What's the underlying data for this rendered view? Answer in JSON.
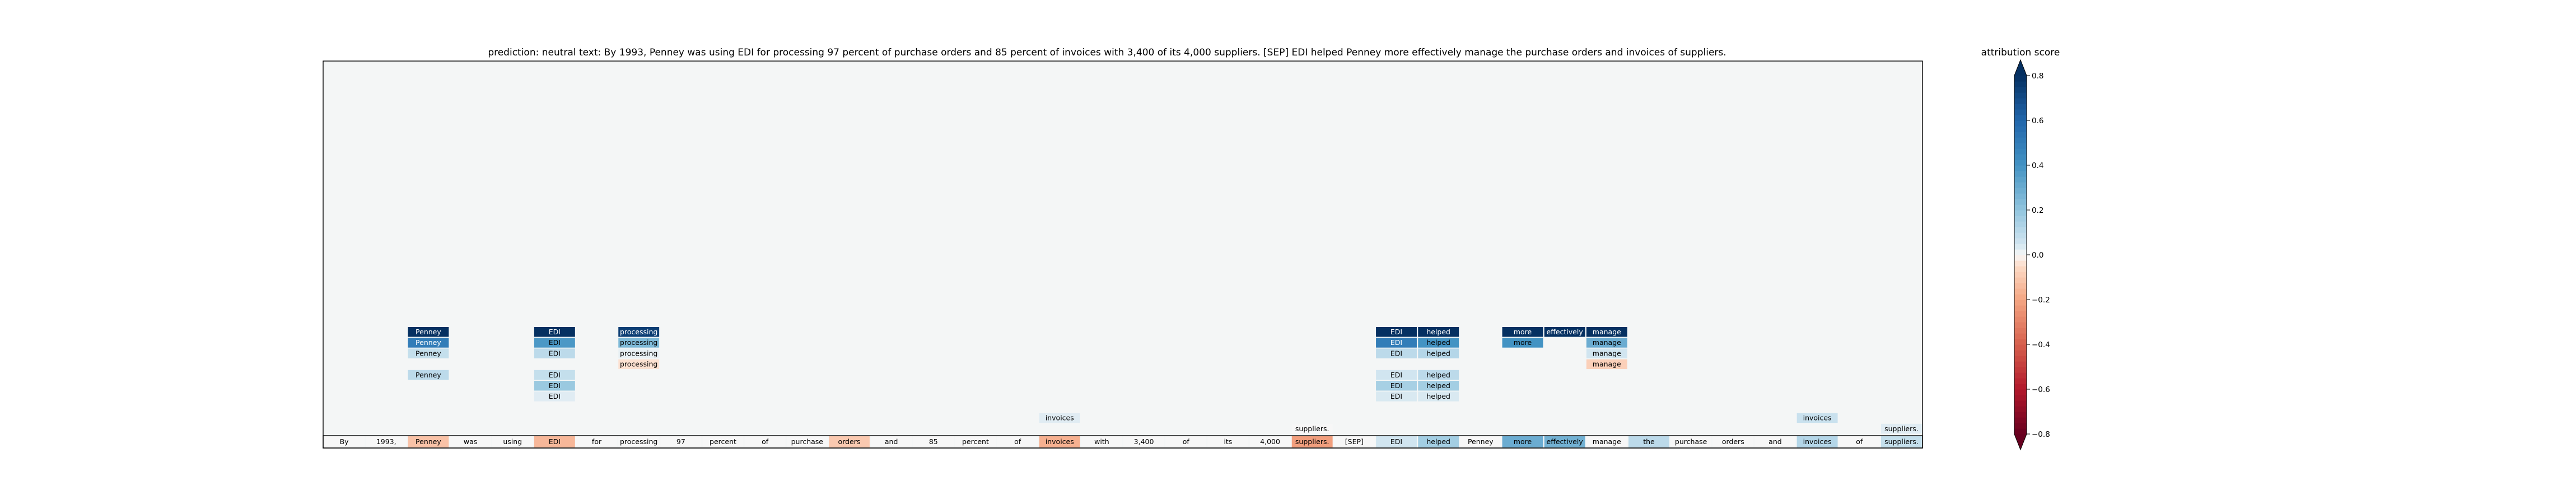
{
  "title": "prediction:  neutral     text:  By 1993, Penney was using EDI for processing 97 percent of purchase orders and 85 percent of invoices with 3,400 of its 4,000 suppliers. [SEP] EDI helped Penney more effectively manage the purchase orders and invoices of suppliers.",
  "colorbar": {
    "label": "attribution score",
    "ticks": [
      "0.8",
      "0.6",
      "0.4",
      "0.2",
      "0.0",
      "−0.2",
      "−0.4",
      "−0.6",
      "−0.8"
    ],
    "tick_values": [
      0.8,
      0.6,
      0.4,
      0.2,
      0.0,
      -0.2,
      -0.4,
      -0.6,
      -0.8
    ],
    "colormap": "RdBu (red = negative, blue = positive)",
    "range": [
      -0.8,
      0.8
    ],
    "extend": "both"
  },
  "chart_data": {
    "type": "heatmap",
    "title": "prediction:  neutral     text:  By 1993, Penney was using EDI for processing 97 percent of purchase orders and 85 percent of invoices with 3,400 of its 4,000 suppliers. [SEP] EDI helped Penney more effectively manage the purchase orders and invoices of suppliers.",
    "tokens": [
      {
        "text": "By",
        "score": 0.0
      },
      {
        "text": "1993,",
        "score": 0.0
      },
      {
        "text": "Penney",
        "score": -0.12
      },
      {
        "text": "was",
        "score": 0.0
      },
      {
        "text": "using",
        "score": 0.0
      },
      {
        "text": "EDI",
        "score": -0.15
      },
      {
        "text": "for",
        "score": 0.0
      },
      {
        "text": "processing",
        "score": 0.0
      },
      {
        "text": "97",
        "score": 0.0
      },
      {
        "text": "percent",
        "score": 0.0
      },
      {
        "text": "of",
        "score": 0.0
      },
      {
        "text": "purchase",
        "score": 0.0
      },
      {
        "text": "orders",
        "score": -0.1
      },
      {
        "text": "and",
        "score": 0.0
      },
      {
        "text": "85",
        "score": 0.0
      },
      {
        "text": "percent",
        "score": 0.0
      },
      {
        "text": "of",
        "score": 0.0
      },
      {
        "text": "invoices",
        "score": -0.17
      },
      {
        "text": "with",
        "score": 0.0
      },
      {
        "text": "3,400",
        "score": 0.0
      },
      {
        "text": "of",
        "score": 0.0
      },
      {
        "text": "its",
        "score": 0.0
      },
      {
        "text": "4,000",
        "score": 0.0
      },
      {
        "text": "suppliers.",
        "score": -0.22
      },
      {
        "text": "[SEP]",
        "score": 0.0
      },
      {
        "text": "EDI",
        "score": 0.05
      },
      {
        "text": "helped",
        "score": 0.16
      },
      {
        "text": "Penney",
        "score": 0.0
      },
      {
        "text": "more",
        "score": 0.3
      },
      {
        "text": "effectively",
        "score": 0.28
      },
      {
        "text": "manage",
        "score": 0.0
      },
      {
        "text": "the",
        "score": 0.1
      },
      {
        "text": "purchase",
        "score": 0.0
      },
      {
        "text": "orders",
        "score": 0.0
      },
      {
        "text": "and",
        "score": 0.0
      },
      {
        "text": "invoices",
        "score": 0.12
      },
      {
        "text": "of",
        "score": 0.0
      },
      {
        "text": "suppliers.",
        "score": 0.08
      }
    ],
    "attention_cells": [
      {
        "token_index": 2,
        "text": "Penney",
        "level": 9,
        "score": 0.8
      },
      {
        "token_index": 2,
        "text": "Penney",
        "level": 8,
        "score": 0.5
      },
      {
        "token_index": 2,
        "text": "Penney",
        "level": 7,
        "score": 0.08
      },
      {
        "token_index": 2,
        "text": "Penney",
        "level": 5,
        "score": 0.1
      },
      {
        "token_index": 5,
        "text": "EDI",
        "level": 9,
        "score": 0.8
      },
      {
        "token_index": 5,
        "text": "EDI",
        "level": 8,
        "score": 0.38
      },
      {
        "token_index": 5,
        "text": "EDI",
        "level": 7,
        "score": 0.1
      },
      {
        "token_index": 5,
        "text": "EDI",
        "level": 5,
        "score": 0.08
      },
      {
        "token_index": 5,
        "text": "EDI",
        "level": 4,
        "score": 0.18
      },
      {
        "token_index": 5,
        "text": "EDI",
        "level": 3,
        "score": 0.03
      },
      {
        "token_index": 7,
        "text": "processing",
        "level": 9,
        "score": 0.75
      },
      {
        "token_index": 7,
        "text": "processing",
        "level": 8,
        "score": 0.25
      },
      {
        "token_index": 7,
        "text": "processing",
        "level": 7,
        "score": 0.02
      },
      {
        "token_index": 7,
        "text": "processing",
        "level": 6,
        "score": -0.04
      },
      {
        "token_index": 17,
        "text": "invoices",
        "level": 1,
        "score": 0.03
      },
      {
        "token_index": 23,
        "text": "suppliers.",
        "level": 0,
        "score": 0.0
      },
      {
        "token_index": 25,
        "text": "EDI",
        "level": 9,
        "score": 0.85
      },
      {
        "token_index": 25,
        "text": "EDI",
        "level": 8,
        "score": 0.5
      },
      {
        "token_index": 25,
        "text": "EDI",
        "level": 7,
        "score": 0.1
      },
      {
        "token_index": 25,
        "text": "EDI",
        "level": 5,
        "score": 0.05
      },
      {
        "token_index": 25,
        "text": "EDI",
        "level": 4,
        "score": 0.15
      },
      {
        "token_index": 25,
        "text": "EDI",
        "level": 3,
        "score": 0.04
      },
      {
        "token_index": 26,
        "text": "helped",
        "level": 9,
        "score": 0.8
      },
      {
        "token_index": 26,
        "text": "helped",
        "level": 8,
        "score": 0.4
      },
      {
        "token_index": 26,
        "text": "helped",
        "level": 7,
        "score": 0.12
      },
      {
        "token_index": 26,
        "text": "helped",
        "level": 5,
        "score": 0.1
      },
      {
        "token_index": 26,
        "text": "helped",
        "level": 4,
        "score": 0.16
      },
      {
        "token_index": 26,
        "text": "helped",
        "level": 3,
        "score": 0.04
      },
      {
        "token_index": 28,
        "text": "more",
        "level": 9,
        "score": 0.8
      },
      {
        "token_index": 28,
        "text": "more",
        "level": 8,
        "score": 0.4
      },
      {
        "token_index": 29,
        "text": "effectively",
        "level": 9,
        "score": 0.8
      },
      {
        "token_index": 30,
        "text": "manage",
        "level": 9,
        "score": 0.8
      },
      {
        "token_index": 30,
        "text": "manage",
        "level": 8,
        "score": 0.3
      },
      {
        "token_index": 30,
        "text": "manage",
        "level": 7,
        "score": 0.05
      },
      {
        "token_index": 30,
        "text": "manage",
        "level": 6,
        "score": -0.08
      },
      {
        "token_index": 35,
        "text": "invoices",
        "level": 1,
        "score": 0.07
      },
      {
        "token_index": 37,
        "text": "suppliers.",
        "level": 0,
        "score": 0.03
      }
    ]
  }
}
